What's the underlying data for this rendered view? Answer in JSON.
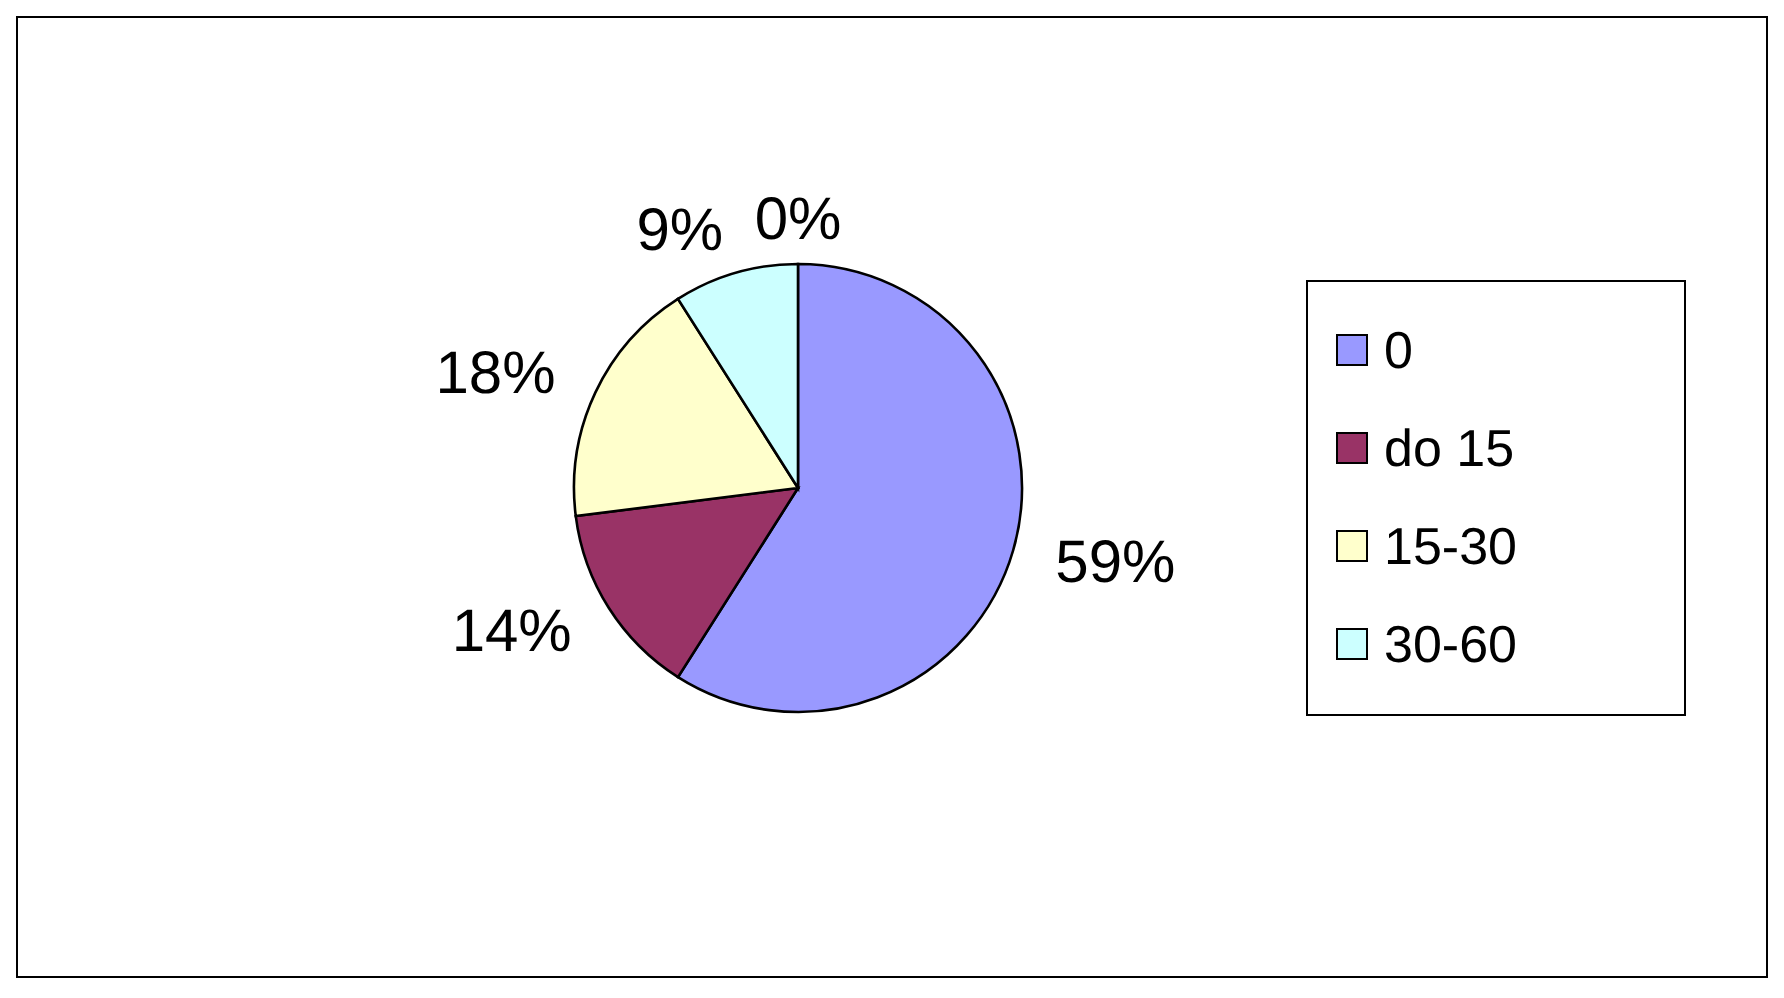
{
  "chart_data": {
    "type": "pie",
    "categories": [
      "0",
      "do 15",
      "15-30",
      "30-60",
      null
    ],
    "values": [
      59,
      14,
      18,
      9,
      0
    ],
    "colors": [
      "#9999ff",
      "#993366",
      "#ffffcc",
      "#ccffff",
      "#ffffff"
    ],
    "value_labels": [
      "59%",
      "14%",
      "18%",
      "9%",
      "0%"
    ],
    "legend": "right"
  }
}
